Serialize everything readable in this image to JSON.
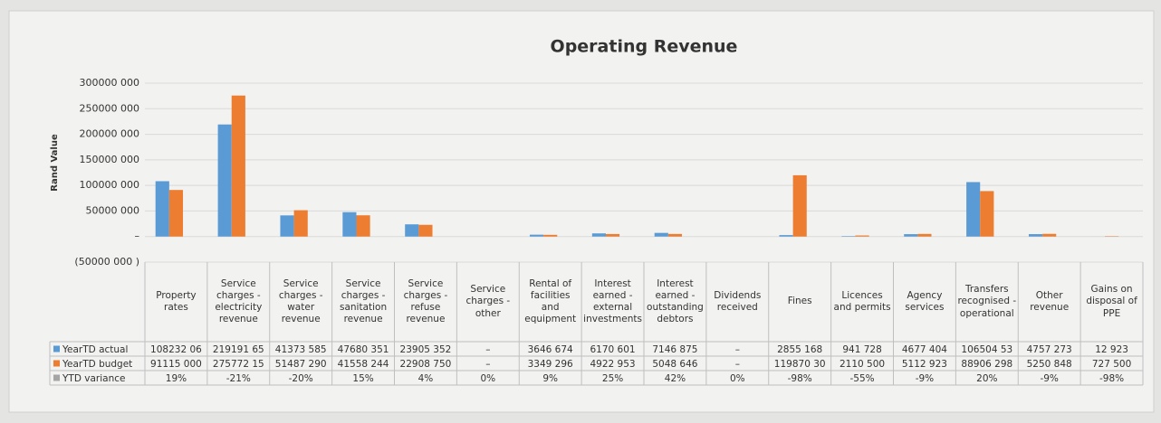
{
  "chart_data": {
    "type": "bar",
    "title": "Operating Revenue",
    "y_label": "Rand Value",
    "categories": [
      "Property rates",
      "Service charges - electricity revenue",
      "Service charges - water revenue",
      "Service charges - sanitation revenue",
      "Service charges - refuse revenue",
      "Service charges - other",
      "Rental of facilities and equipment",
      "Interest earned - external investments",
      "Interest earned - outstanding debtors",
      "Dividends received",
      "Fines",
      "Licences and permits",
      "Agency services",
      "Transfers recognised - operational",
      "Other revenue",
      "Gains on disposal of PPE"
    ],
    "series": [
      {
        "name": "YearTD actual",
        "color": "#5b9bd5",
        "values": [
          108232060,
          219191650,
          41373585,
          47680351,
          23905352,
          0,
          3646674,
          6170601,
          7146875,
          0,
          2855168,
          941728,
          4677404,
          106504530,
          4757273,
          12923
        ],
        "value_labels": [
          "108232 06",
          "219191 65",
          "41373 585",
          "47680 351",
          "23905 352",
          "–",
          "3646 674",
          "6170 601",
          "7146 875",
          "–",
          "2855 168",
          "941 728",
          "4677 404",
          "106504 53",
          "4757 273",
          "12 923"
        ]
      },
      {
        "name": "YearTD budget",
        "color": "#ed7d31",
        "values": [
          91115000,
          275772150,
          51487290,
          41558244,
          22908750,
          0,
          3349296,
          4922953,
          5048646,
          0,
          119870300,
          2110500,
          5112923,
          88906298,
          5250848,
          727500
        ],
        "value_labels": [
          "91115 000",
          "275772 15",
          "51487 290",
          "41558 244",
          "22908 750",
          "–",
          "3349 296",
          "4922 953",
          "5048 646",
          "–",
          "119870 30",
          "2110 500",
          "5112 923",
          "88906 298",
          "5250 848",
          "727 500"
        ]
      },
      {
        "name": "YTD variance",
        "color": "#a5a5a5",
        "values": [
          19,
          -21,
          -20,
          15,
          4,
          0,
          9,
          25,
          42,
          0,
          -98,
          -55,
          -9,
          20,
          -9,
          -98
        ],
        "value_labels": [
          "19%",
          "-21%",
          "-20%",
          "15%",
          "4%",
          "0%",
          "9%",
          "25%",
          "42%",
          "0%",
          "-98%",
          "-55%",
          "-9%",
          "20%",
          "-9%",
          "-98%"
        ]
      }
    ],
    "ylim": [
      -50000000,
      300000000
    ],
    "yticks": [
      {
        "value": -50000000,
        "label": "(50000 000 )"
      },
      {
        "value": 0,
        "label": "–"
      },
      {
        "value": 50000000,
        "label": "50000 000"
      },
      {
        "value": 100000000,
        "label": "100000 000"
      },
      {
        "value": 150000000,
        "label": "150000 000"
      },
      {
        "value": 200000000,
        "label": "200000 000"
      },
      {
        "value": 250000000,
        "label": "250000 000"
      },
      {
        "value": 300000000,
        "label": "300000 000"
      }
    ],
    "grid": true
  }
}
